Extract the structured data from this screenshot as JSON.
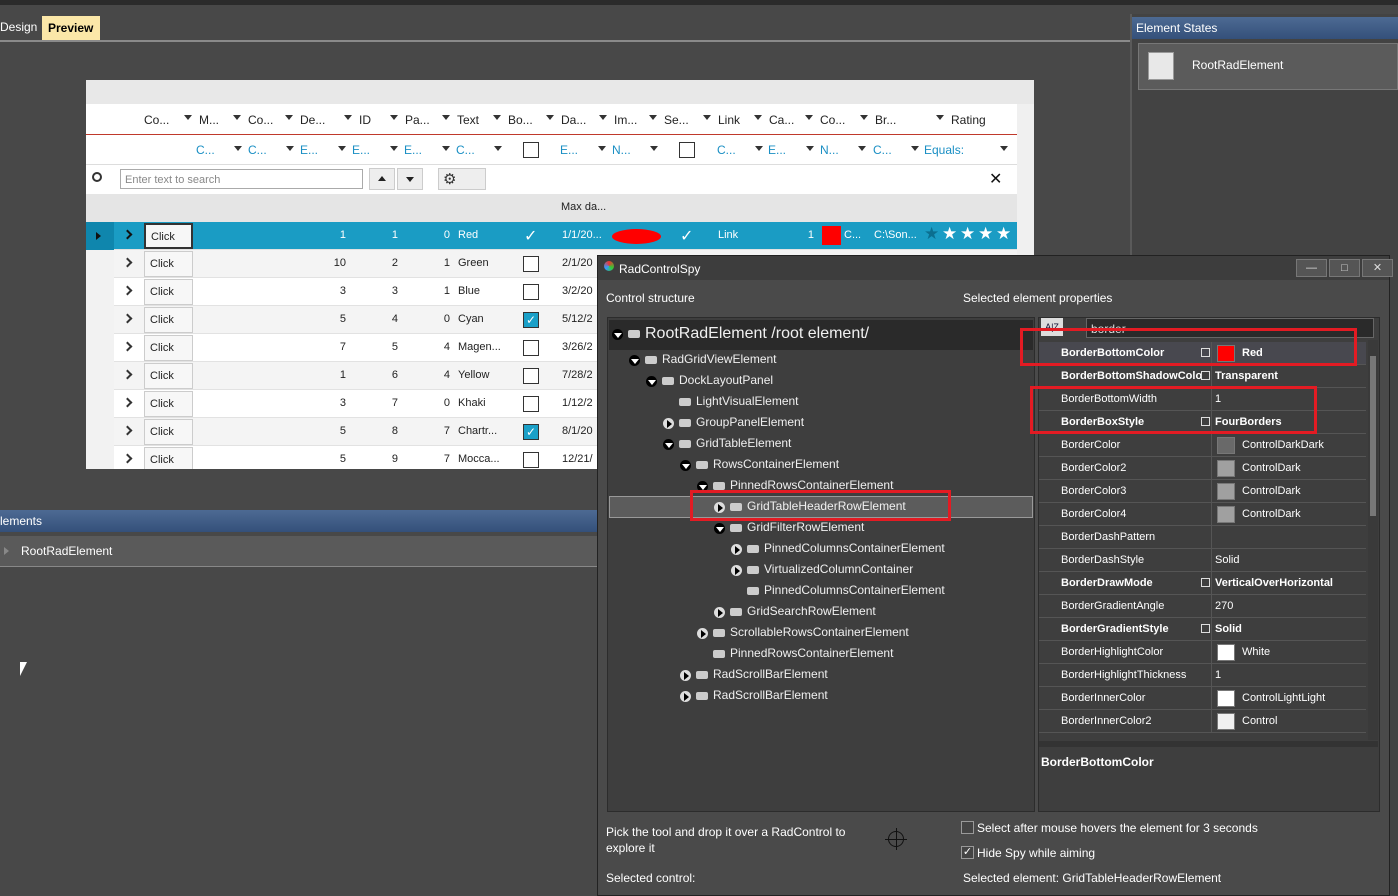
{
  "tabs": [
    "Design",
    "Preview"
  ],
  "element_states": {
    "title": "Element States",
    "item": "RootRadElement"
  },
  "elements": {
    "title": "lements",
    "item": "RootRadElement"
  },
  "grid": {
    "headers": [
      "Co...",
      "M...",
      "Co...",
      "De...",
      "ID",
      "Pa...",
      "Text",
      "Bo...",
      "Da...",
      "Im...",
      "Se...",
      "Link",
      "Ca...",
      "Co...",
      "Br...",
      "Rating"
    ],
    "filters": [
      null,
      "C...",
      "C...",
      "E...",
      "E...",
      "E...",
      "C...",
      null,
      "E...",
      "N...",
      null,
      "C...",
      "E...",
      "N...",
      "C...",
      "Equals:"
    ],
    "search_placeholder": "Enter text to search",
    "group_header": "Max da...",
    "rows": [
      {
        "button": "Click",
        "de": "1",
        "id": "1",
        "pa": "0",
        "text": "Red",
        "bo": true,
        "date": "1/1/20..."
      },
      {
        "button": "Click",
        "de": "10",
        "id": "2",
        "pa": "1",
        "text": "Green",
        "bo": false,
        "date": "2/1/20"
      },
      {
        "button": "Click",
        "de": "3",
        "id": "3",
        "pa": "1",
        "text": "Blue",
        "bo": false,
        "date": "3/2/20"
      },
      {
        "button": "Click",
        "de": "5",
        "id": "4",
        "pa": "0",
        "text": "Cyan",
        "bo": true,
        "date": "5/12/2"
      },
      {
        "button": "Click",
        "de": "7",
        "id": "5",
        "pa": "4",
        "text": "Magen...",
        "bo": false,
        "date": "3/26/2"
      },
      {
        "button": "Click",
        "de": "1",
        "id": "6",
        "pa": "4",
        "text": "Yellow",
        "bo": false,
        "date": "7/28/2"
      },
      {
        "button": "Click",
        "de": "3",
        "id": "7",
        "pa": "0",
        "text": "Khaki",
        "bo": false,
        "date": "1/12/2"
      },
      {
        "button": "Click",
        "de": "5",
        "id": "8",
        "pa": "7",
        "text": "Chartr...",
        "bo": true,
        "date": "8/1/20"
      },
      {
        "button": "Click",
        "de": "5",
        "id": "9",
        "pa": "7",
        "text": "Mocca...",
        "bo": false,
        "date": "12/21/"
      }
    ],
    "first_row": {
      "se": true,
      "link": "Link",
      "ca": "1",
      "color": "#ff0000",
      "br": "C...",
      "path": "C:\\Son...",
      "rating": 5
    }
  },
  "spy": {
    "title": "RadControlSpy",
    "structure_title": "Control structure",
    "properties_title": "Selected element properties",
    "search": "border",
    "tree": [
      {
        "label": "RootRadElement /root element/",
        "level": 0,
        "state": "expanded"
      },
      {
        "label": "RadGridViewElement",
        "level": 1,
        "state": "expanded"
      },
      {
        "label": "DockLayoutPanel",
        "level": 2,
        "state": "expanded"
      },
      {
        "label": "LightVisualElement",
        "level": 3,
        "state": "none"
      },
      {
        "label": "GroupPanelElement",
        "level": 3,
        "state": "collapsed"
      },
      {
        "label": "GridTableElement",
        "level": 3,
        "state": "expanded"
      },
      {
        "label": "RowsContainerElement",
        "level": 4,
        "state": "expanded"
      },
      {
        "label": "PinnedRowsContainerElement",
        "level": 5,
        "state": "expanded"
      },
      {
        "label": "GridTableHeaderRowElement",
        "level": 6,
        "state": "collapsed",
        "selected": true
      },
      {
        "label": "GridFilterRowElement",
        "level": 6,
        "state": "expanded"
      },
      {
        "label": "PinnedColumnsContainerElement",
        "level": 7,
        "state": "collapsed"
      },
      {
        "label": "VirtualizedColumnContainer",
        "level": 7,
        "state": "collapsed"
      },
      {
        "label": "PinnedColumnsContainerElement",
        "level": 7,
        "state": "none"
      },
      {
        "label": "GridSearchRowElement",
        "level": 6,
        "state": "collapsed"
      },
      {
        "label": "ScrollableRowsContainerElement",
        "level": 5,
        "state": "collapsed"
      },
      {
        "label": "PinnedRowsContainerElement",
        "level": 5,
        "state": "none"
      },
      {
        "label": "RadScrollBarElement",
        "level": 4,
        "state": "collapsed"
      },
      {
        "label": "RadScrollBarElement",
        "level": 4,
        "state": "collapsed"
      }
    ],
    "properties": [
      {
        "name": "BorderBottomColor",
        "value": "Red",
        "bold": true,
        "swatch": "#ff0000",
        "modified": true
      },
      {
        "name": "BorderBottomShadowColo",
        "value": "Transparent",
        "bold": true,
        "modified": true
      },
      {
        "name": "BorderBottomWidth",
        "value": "1"
      },
      {
        "name": "BorderBoxStyle",
        "value": "FourBorders",
        "bold": true,
        "modified": true
      },
      {
        "name": "BorderColor",
        "value": "ControlDarkDark",
        "swatch": "#696969"
      },
      {
        "name": "BorderColor2",
        "value": "ControlDark",
        "swatch": "#a0a0a0"
      },
      {
        "name": "BorderColor3",
        "value": "ControlDark",
        "swatch": "#a0a0a0"
      },
      {
        "name": "BorderColor4",
        "value": "ControlDark",
        "swatch": "#a0a0a0"
      },
      {
        "name": "BorderDashPattern",
        "value": null
      },
      {
        "name": "BorderDashStyle",
        "value": "Solid"
      },
      {
        "name": "BorderDrawMode",
        "value": "VerticalOverHorizontal",
        "bold": true,
        "modified": true
      },
      {
        "name": "BorderGradientAngle",
        "value": "270"
      },
      {
        "name": "BorderGradientStyle",
        "value": "Solid",
        "bold": true,
        "modified": true
      },
      {
        "name": "BorderHighlightColor",
        "value": "White",
        "swatch": "#ffffff"
      },
      {
        "name": "BorderHighlightThickness",
        "value": "1"
      },
      {
        "name": "BorderInnerColor",
        "value": "ControlLightLight",
        "swatch": "#ffffff"
      },
      {
        "name": "BorderInnerColor2",
        "value": "Control",
        "swatch": "#f0f0f0"
      }
    ],
    "description": "BorderBottomColor",
    "hint": "Pick the tool and drop it over a RadControl to explore it",
    "hover_option": {
      "label": "Select after mouse hovers the element for 3 seconds",
      "checked": false
    },
    "hide_option": {
      "label": "Hide Spy while aiming",
      "checked": true
    },
    "selected_control": "Selected control:",
    "selected_element": "Selected element: GridTableHeaderRowElement"
  }
}
